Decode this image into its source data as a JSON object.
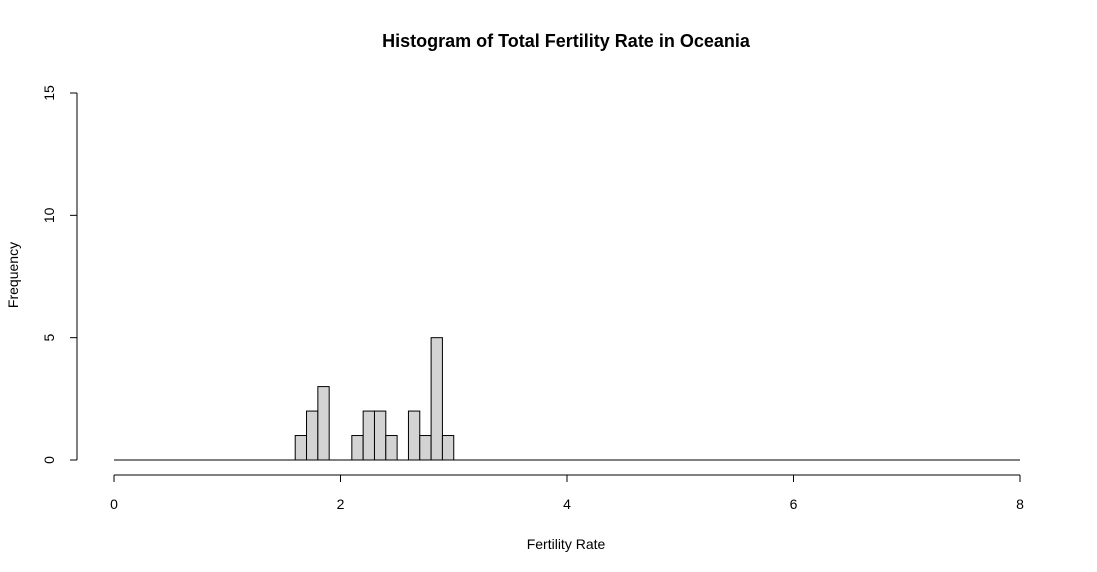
{
  "chart_data": {
    "type": "bar",
    "title": "Histogram of Total Fertility Rate in Oceania",
    "xlabel": "Fertility Rate",
    "ylabel": "Frequency",
    "xlim": [
      0,
      8
    ],
    "ylim": [
      0,
      15
    ],
    "x_ticks": [
      "0",
      "2",
      "4",
      "6",
      "8"
    ],
    "y_ticks": [
      "0",
      "5",
      "10",
      "15"
    ],
    "bin_width": 0.1,
    "bins": [
      {
        "start": 1.6,
        "end": 1.7,
        "count": 1
      },
      {
        "start": 1.7,
        "end": 1.8,
        "count": 2
      },
      {
        "start": 1.8,
        "end": 1.9,
        "count": 3
      },
      {
        "start": 2.1,
        "end": 2.2,
        "count": 1
      },
      {
        "start": 2.2,
        "end": 2.3,
        "count": 2
      },
      {
        "start": 2.3,
        "end": 2.4,
        "count": 2
      },
      {
        "start": 2.4,
        "end": 2.5,
        "count": 1
      },
      {
        "start": 2.6,
        "end": 2.7,
        "count": 2
      },
      {
        "start": 2.7,
        "end": 2.8,
        "count": 1
      },
      {
        "start": 2.8,
        "end": 2.9,
        "count": 5
      },
      {
        "start": 2.9,
        "end": 3.0,
        "count": 1
      }
    ],
    "zero_bins": {
      "start": 0.0,
      "end": 8.0
    },
    "bar_fill": "#d3d3d3",
    "bar_stroke": "#000000",
    "grid": false,
    "legend": "none"
  }
}
